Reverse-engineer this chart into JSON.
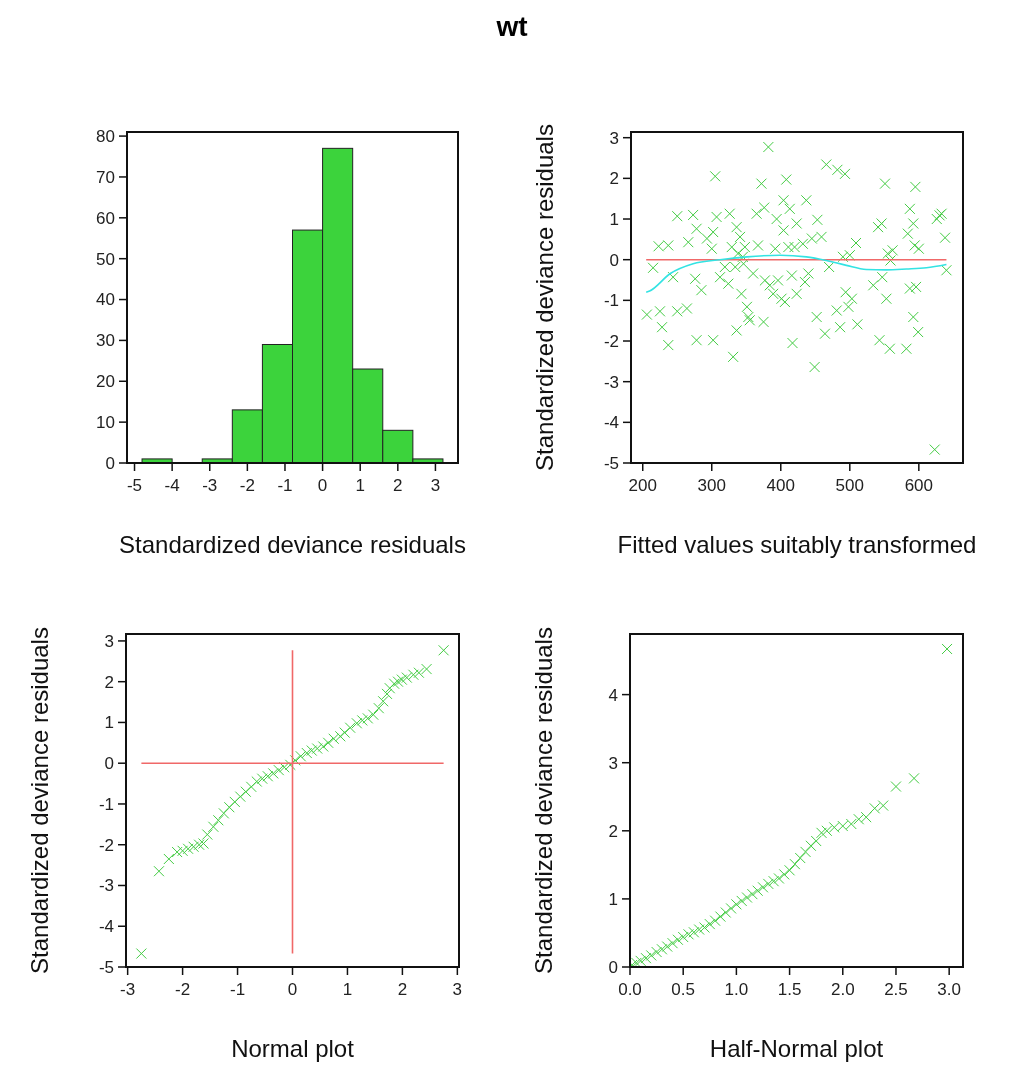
{
  "chart_data": [
    {
      "type": "other",
      "title": "wt"
    },
    {
      "type": "histogram",
      "xlabel": "Standardized deviance residuals",
      "color": "#3cd33c",
      "bins": [
        -4.8,
        -4.0,
        -3.2,
        -2.4,
        -1.6,
        -0.8,
        0,
        0.8,
        1.6,
        2.4,
        3.2
      ],
      "values": [
        1,
        0,
        1,
        13,
        29,
        57,
        77,
        23,
        8,
        1
      ],
      "xlim": [
        -5.2,
        3.6
      ],
      "ylim": [
        0,
        81
      ],
      "xticks": [
        -5,
        -4,
        -3,
        -2,
        -1,
        0,
        1,
        2,
        3
      ],
      "yticks": [
        0,
        10,
        20,
        30,
        40,
        50,
        60,
        70,
        80
      ]
    },
    {
      "type": "scatter",
      "xlabel": "Fitted values suitably transformed",
      "ylabel": "Standardized deviance residuals",
      "xlim": [
        183,
        664
      ],
      "ylim": [
        -5,
        3.14
      ],
      "xticks": [
        200,
        300,
        400,
        500,
        600
      ],
      "yticks": [
        -5,
        -4,
        -3,
        -2,
        -1,
        0,
        1,
        2,
        3
      ],
      "series": [
        {
          "type": "scatter",
          "marker": "cross",
          "color": "#44cc44",
          "x": [
            206,
            215,
            223,
            225,
            228,
            237,
            237,
            244,
            250,
            250,
            264,
            266,
            273,
            276,
            278,
            278,
            285,
            293,
            300,
            302,
            305,
            302,
            307,
            312,
            319,
            324,
            326,
            329,
            331,
            334,
            336,
            336,
            338,
            341,
            343,
            345,
            346,
            348,
            351,
            353,
            355,
            360,
            365,
            367,
            372,
            375,
            376,
            377,
            382,
            384,
            389,
            392,
            394,
            396,
            401,
            404,
            404,
            406,
            408,
            411,
            413,
            416,
            417,
            420,
            423,
            423,
            432,
            435,
            437,
            440,
            445,
            449,
            452,
            453,
            459,
            464,
            466,
            470,
            481,
            482,
            486,
            490,
            493,
            494,
            498,
            500,
            503,
            509,
            511,
            534,
            541,
            543,
            546,
            547,
            551,
            553,
            555,
            558,
            559,
            562,
            582,
            584,
            587,
            587,
            592,
            592,
            594,
            595,
            596,
            599,
            600,
            626,
            623,
            630,
            633,
            638,
            640
          ],
          "values": [
            -1.35,
            -0.2,
            0.33,
            -1.27,
            -1.66,
            0.35,
            -2.1,
            -0.43,
            1.07,
            -1.27,
            -1.2,
            0.43,
            1.1,
            -0.47,
            -1.98,
            0.76,
            -0.75,
            0.52,
            0.27,
            -1.98,
            2.05,
            0.68,
            1.05,
            -0.43,
            -0.18,
            -0.59,
            1.13,
            0.31,
            -2.39,
            -0.18,
            -1.74,
            0.8,
            0.15,
            0.56,
            -0.84,
            0.07,
            -0.1,
            0.31,
            -1.16,
            -1.41,
            -1.49,
            -0.34,
            1.13,
            0.35,
            1.87,
            -1.53,
            1.28,
            -0.51,
            2.77,
            -0.63,
            -0.84,
            0.27,
            1.0,
            -0.51,
            -0.96,
            1.46,
            0.72,
            -1.04,
            1.97,
            0.31,
            1.25,
            -0.39,
            -2.05,
            0.31,
            0.89,
            -0.84,
            0.39,
            -0.55,
            1.46,
            -0.34,
            0.52,
            -2.64,
            -1.41,
            0.98,
            0.56,
            -1.82,
            2.34,
            -0.18,
            -1.25,
            2.21,
            -1.66,
            0.07,
            2.11,
            -0.8,
            -1.16,
            0.11,
            -0.96,
            0.41,
            -1.59,
            -0.63,
            0.8,
            -1.98,
            0.89,
            -0.43,
            1.87,
            -0.96,
            0.15,
            -2.19,
            -0.02,
            0.23,
            -2.19,
            0.64,
            1.25,
            -0.71,
            -1.41,
            0.89,
            0.35,
            1.79,
            -0.67,
            -1.78,
            0.27,
            1.0,
            -4.67,
            1.09,
            1.13,
            0.54,
            -0.26
          ]
        },
        {
          "type": "line",
          "marker": "none",
          "color": "#f06868",
          "x": [
            205,
            640
          ],
          "values": [
            0,
            0
          ]
        },
        {
          "type": "line",
          "marker": "none",
          "color": "#33e3e3",
          "x": [
            205,
            210,
            240,
            273,
            312,
            351,
            399,
            437,
            466,
            495,
            524,
            553,
            582,
            611,
            640
          ],
          "values": [
            -0.8,
            -0.77,
            -0.34,
            -0.1,
            0,
            0.07,
            0.11,
            0.07,
            -0.02,
            -0.14,
            -0.24,
            -0.25,
            -0.23,
            -0.2,
            -0.12
          ]
        }
      ]
    },
    {
      "type": "scatter",
      "xlabel": "Normal plot",
      "ylabel": "Standardized deviance residuals",
      "xlim": [
        -3.03,
        3.03
      ],
      "ylim": [
        -5,
        3.17
      ],
      "xticks": [
        -3,
        -2,
        -1,
        0,
        1,
        2,
        3
      ],
      "yticks": [
        -5,
        -4,
        -3,
        -2,
        -1,
        0,
        1,
        2,
        3
      ],
      "series": [
        {
          "type": "scatter",
          "marker": "cross",
          "color": "#44cc44",
          "x": [
            -2.75,
            -2.43,
            -2.25,
            -2.1,
            -2.0,
            -1.9,
            -1.8,
            -1.7,
            -1.62,
            -1.55,
            -1.44,
            -1.35,
            -1.25,
            -1.15,
            -1.05,
            -0.95,
            -0.85,
            -0.75,
            -0.65,
            -0.55,
            -0.45,
            -0.35,
            -0.25,
            -0.15,
            -0.04,
            0.05,
            0.15,
            0.26,
            0.35,
            0.45,
            0.56,
            0.65,
            0.75,
            0.87,
            0.95,
            1.05,
            1.17,
            1.27,
            1.37,
            1.47,
            1.57,
            1.65,
            1.72,
            1.77,
            1.85,
            1.92,
            1.99,
            2.08,
            2.2,
            2.3,
            2.44,
            2.75
          ],
          "values": [
            -4.67,
            -2.65,
            -2.35,
            -2.18,
            -2.15,
            -2.1,
            -2.05,
            -2.0,
            -1.97,
            -1.75,
            -1.56,
            -1.4,
            -1.23,
            -1.08,
            -0.95,
            -0.82,
            -0.7,
            -0.58,
            -0.45,
            -0.38,
            -0.32,
            -0.25,
            -0.17,
            -0.1,
            -0.04,
            0.07,
            0.17,
            0.25,
            0.31,
            0.36,
            0.41,
            0.5,
            0.6,
            0.66,
            0.75,
            0.87,
            0.98,
            1.05,
            1.1,
            1.19,
            1.35,
            1.52,
            1.7,
            1.84,
            1.95,
            2.0,
            2.05,
            2.1,
            2.17,
            2.22,
            2.31,
            2.77
          ]
        },
        {
          "type": "line",
          "marker": "none",
          "color": "#f06868",
          "x": [
            -2.75,
            2.75
          ],
          "values": [
            0,
            0
          ]
        },
        {
          "type": "line",
          "marker": "none",
          "color": "#f06868",
          "x": [
            0,
            0
          ],
          "values": [
            -4.67,
            2.77
          ]
        }
      ]
    },
    {
      "type": "scatter",
      "xlabel": "Half-Normal plot",
      "ylabel": "Standardized deviance residuals",
      "xlim": [
        0,
        3.13
      ],
      "ylim": [
        0,
        4.89
      ],
      "xticks": [
        {
          "value": 0,
          "label": "0.0"
        },
        0.5,
        {
          "value": 1,
          "label": "1.0"
        },
        1.5,
        {
          "value": 2,
          "label": "2.0"
        },
        2.5,
        {
          "value": 3,
          "label": "3.0"
        }
      ],
      "yticks": [
        0,
        1,
        2,
        3,
        4
      ],
      "series": [
        {
          "type": "scatter",
          "marker": "cross",
          "color": "#44cc44",
          "x": [
            0.02,
            0.06,
            0.1,
            0.15,
            0.2,
            0.25,
            0.3,
            0.35,
            0.4,
            0.45,
            0.5,
            0.55,
            0.6,
            0.65,
            0.7,
            0.75,
            0.8,
            0.85,
            0.9,
            0.95,
            1.0,
            1.05,
            1.1,
            1.15,
            1.2,
            1.25,
            1.3,
            1.35,
            1.4,
            1.45,
            1.5,
            1.55,
            1.6,
            1.65,
            1.7,
            1.75,
            1.8,
            1.85,
            1.92,
            2.0,
            2.08,
            2.15,
            2.22,
            2.3,
            2.38,
            2.5,
            2.67,
            2.98
          ],
          "values": [
            0.03,
            0.06,
            0.09,
            0.13,
            0.17,
            0.22,
            0.26,
            0.3,
            0.35,
            0.4,
            0.44,
            0.48,
            0.51,
            0.55,
            0.58,
            0.63,
            0.68,
            0.74,
            0.8,
            0.86,
            0.92,
            0.97,
            1.02,
            1.07,
            1.12,
            1.17,
            1.22,
            1.26,
            1.3,
            1.36,
            1.42,
            1.51,
            1.6,
            1.69,
            1.78,
            1.85,
            1.97,
            2.0,
            2.05,
            2.07,
            2.1,
            2.17,
            2.2,
            2.33,
            2.37,
            2.65,
            2.77,
            4.67
          ]
        }
      ]
    }
  ]
}
